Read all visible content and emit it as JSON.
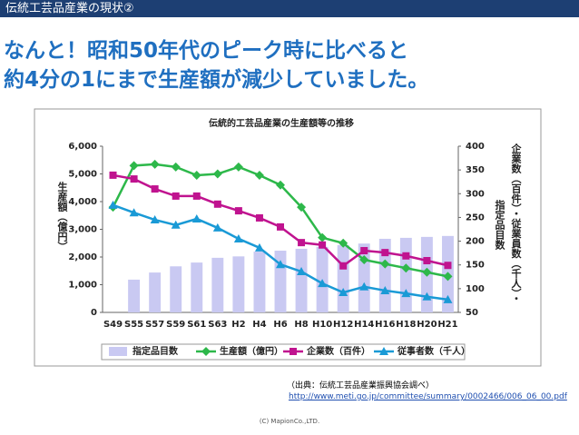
{
  "slide": {
    "header": "伝統工芸品産業の現状②",
    "title_lines": [
      "なんと！昭和50年代のピーク時に比べると",
      "約4分の1にまで生産額が減少していました。"
    ],
    "source": "（出典：伝統工芸品産業振興協会調べ）",
    "url": "http://www.meti.go.jp/committee/summary/0002466/006_06_00.pdf",
    "footer": "(C) MapionCo.,LTD."
  },
  "chart_data": {
    "type": "bar-line",
    "title": "伝統的工芸品産業の生産額等の推移",
    "ylabel": "生産額（億円）",
    "y2label": "企業数（百件）・従業員数（千人）・",
    "y2label_inner": "指定品目数",
    "categories": [
      "S49",
      "S55",
      "S57",
      "S59",
      "S61",
      "S63",
      "H2",
      "H4",
      "H6",
      "H8",
      "H10",
      "H12",
      "H14",
      "H16",
      "H18",
      "H20",
      "H21"
    ],
    "ylim": [
      0,
      6000
    ],
    "yticks": [
      0,
      {
        "value": 1000,
        "label": "1,000"
      },
      {
        "value": 2000,
        "label": "2,000"
      },
      {
        "value": 3000,
        "label": "3,000"
      },
      {
        "value": 4000,
        "label": "4,000"
      },
      {
        "value": 5000,
        "label": "5,000"
      },
      {
        "value": 6000,
        "label": "6,000"
      }
    ],
    "y2lim": [
      50,
      400
    ],
    "y2ticks": [
      50,
      100,
      150,
      200,
      250,
      300,
      350,
      400
    ],
    "series": [
      {
        "name": "指定品目数",
        "kind": "bar",
        "axis": "y2",
        "color": "#c9c9f2",
        "values": [
          null,
          119,
          134,
          147,
          155,
          165,
          168,
          178,
          180,
          184,
          188,
          192,
          195,
          205,
          207,
          209,
          211
        ]
      },
      {
        "name": "生産額（億円）",
        "kind": "line",
        "marker": "diamond",
        "color": "#2db84a",
        "values": [
          3800,
          5300,
          5350,
          5250,
          4950,
          5000,
          5250,
          4950,
          4600,
          3800,
          2700,
          2500,
          1900,
          1750,
          1600,
          1450,
          1300
        ]
      },
      {
        "name": "企業数（百件）",
        "kind": "line",
        "marker": "square",
        "axis": "y2",
        "color": "#c0138f",
        "values": [
          339,
          331,
          310,
          295,
          295,
          278,
          264,
          249,
          230,
          197,
          192,
          148,
          180,
          176,
          169,
          159,
          149
        ]
      },
      {
        "name": "従事者数（千人）",
        "kind": "line",
        "marker": "triangle",
        "axis": "y2",
        "color": "#1a9ad6",
        "values": [
          276,
          260,
          245,
          234,
          247,
          228,
          205,
          186,
          151,
          136,
          111,
          92,
          104,
          96,
          90,
          83,
          77
        ]
      }
    ]
  }
}
